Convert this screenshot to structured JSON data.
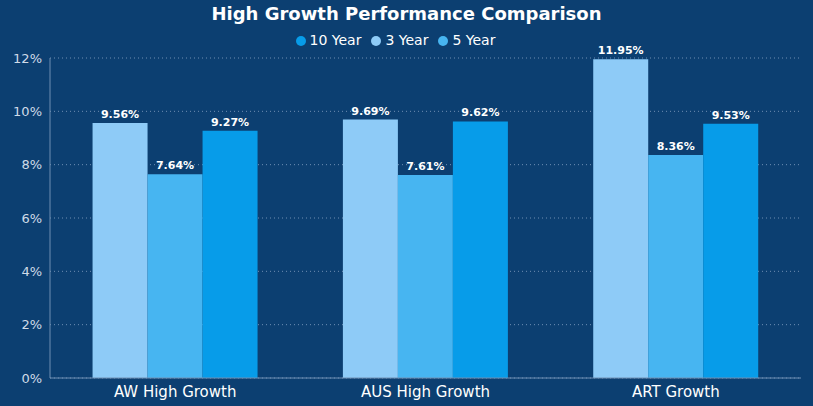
{
  "chart_data": {
    "type": "bar",
    "title": "High Growth Performance Comparison",
    "categories": [
      "AW High Growth",
      "AUS High Growth",
      "ART Growth"
    ],
    "series": [
      {
        "name": "3 Year",
        "color": "#8ecbf7",
        "values": [
          9.56,
          9.69,
          11.95
        ],
        "value_labels": [
          "9.56%",
          "9.69%",
          "11.95%"
        ]
      },
      {
        "name": "5 Year",
        "color": "#47b5f1",
        "values": [
          7.64,
          7.61,
          8.36
        ],
        "value_labels": [
          "7.64%",
          "7.61%",
          "8.36%"
        ]
      },
      {
        "name": "10 Year",
        "color": "#079ce9",
        "values": [
          9.27,
          9.62,
          9.53
        ],
        "value_labels": [
          "9.27%",
          "9.62%",
          "9.53%"
        ]
      }
    ],
    "ylim": [
      0,
      12
    ],
    "yticks": [
      {
        "value": 0,
        "label": "0%"
      },
      {
        "value": 2,
        "label": "2%"
      },
      {
        "value": 4,
        "label": "4%"
      },
      {
        "value": 6,
        "label": "6%"
      },
      {
        "value": 8,
        "label": "8%"
      },
      {
        "value": 10,
        "label": "10%"
      },
      {
        "value": 12,
        "label": "12%"
      }
    ],
    "grid": true,
    "legend": "top",
    "data_labels": true
  }
}
